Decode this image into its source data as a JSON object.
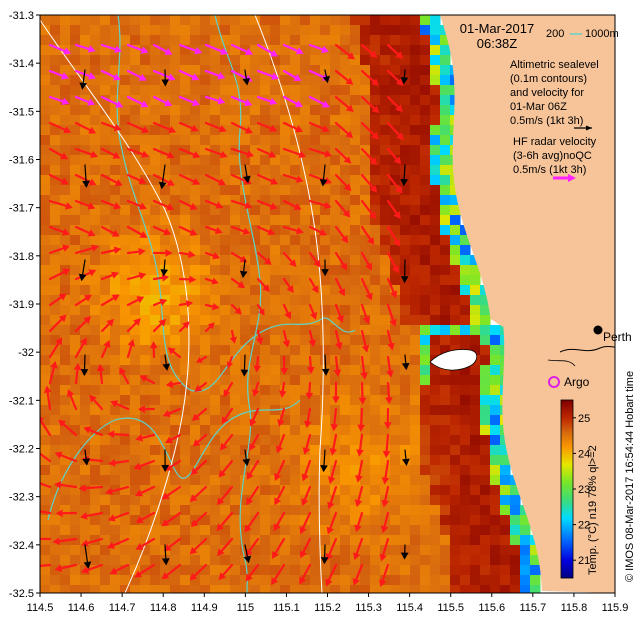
{
  "map": {
    "date": "01-Mar-2017",
    "time": "06:38Z",
    "depth_legend": {
      "label_200": "200",
      "label_1000": "1000m",
      "color": "#5fd3c8"
    },
    "altimetry_text": [
      "Altimetric sealevel",
      "(0.1m contours)",
      "and velocity for",
      "01-Mar 06Z",
      "0.5m/s (1kt 3h)"
    ],
    "hf_text": [
      "HF radar velocity",
      "(3-6h avg)noQC",
      "0.5m/s (1kt 3h)"
    ],
    "places": {
      "perth": "Perth",
      "argo": "Argo"
    },
    "colorbar": {
      "label": "Temp. (°C) n19 78% ql>=2",
      "ticks": [
        "21",
        "22",
        "23",
        "24",
        "25"
      ],
      "min": 20.5,
      "max": 25.5
    },
    "credit": "© IMOS 08-Mar-2017 16:54:44 Hobart time",
    "x_ticks": [
      "114.5",
      "114.6",
      "114.7",
      "114.8",
      "114.9",
      "115",
      "115.1",
      "115.2",
      "115.3",
      "115.4",
      "115.5",
      "115.6",
      "115.7",
      "115.8",
      "115.9"
    ],
    "y_ticks": [
      "-31.3",
      "-31.4",
      "-31.5",
      "-31.6",
      "-31.7",
      "-31.8",
      "-31.9",
      "-32",
      "-32.1",
      "-32.2",
      "-32.3",
      "-32.4",
      "-32.5"
    ],
    "lon_range": [
      114.5,
      115.9
    ],
    "lat_range": [
      -32.5,
      -31.3
    ],
    "colors": {
      "land": "#f7c49a",
      "hf_arrow": "#ff1a1a",
      "hf_arrow_north": "#ff22ff",
      "alti_arrow": "#000000",
      "argo": "#e020e0",
      "contour": "#ffffff"
    }
  }
}
